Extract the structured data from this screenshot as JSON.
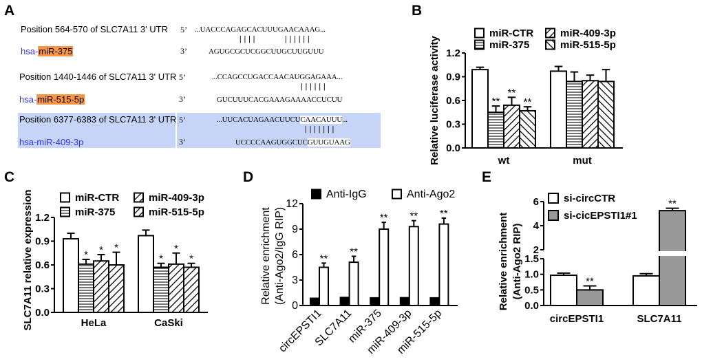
{
  "panel_labels": [
    "A",
    "B",
    "C",
    "D",
    "E"
  ],
  "panel_a": {
    "highlight_color": "#f79646",
    "row_highlight_color": "#c6d4f7",
    "five_prime": "5’",
    "three_prime": "3’",
    "rows": [
      {
        "position": "Position 564-570 of SLC7A11 3' UTR",
        "mirna_prefix": "hsa-",
        "mirna_name": "miR-375",
        "mirna_highlighted": true,
        "utr_seq": "...UACCCAGAGCACUUUGAACAAAG...",
        "utr_seq_highlight": "",
        "utr_seq_suffix": "",
        "pairing": "||||      ||||||",
        "mirna_seq": "AGUGCGCUCGGCUUGCUUGUUU",
        "mirna_seq_highlight": ""
      },
      {
        "position": "Position 1440-1446 of SLC7A11 3' UTR",
        "mirna_prefix": "hsa-",
        "mirna_name": "miR-515-5p",
        "mirna_highlighted": true,
        "utr_seq": "...CCAGCCUGACCAACAUGGAGAAA...",
        "utr_seq_highlight": "",
        "utr_seq_suffix": "",
        "pairing": "||||||",
        "mirna_seq": "GUCUUUCACGAAAGAAAACCUCUU",
        "mirna_seq_highlight": ""
      },
      {
        "position": "Position 6377-6383 of SLC7A11 3' UTR",
        "mirna_prefix": "hsa-",
        "mirna_name": "miR-409-3p",
        "mirna_highlighted": false,
        "utr_seq": "...UUCACUAGAACUUCU",
        "utr_seq_highlight": "CAACAUUU",
        "utr_seq_suffix": "...",
        "pairing": "|||||||",
        "mirna_seq": "UCCCCAAGUGGCUC",
        "mirna_seq_highlight": "GUUGUAAG"
      }
    ]
  },
  "chart_data": [
    {
      "panel": "B",
      "type": "bar",
      "categories": [
        "wt",
        "mut"
      ],
      "ylabel": [
        "Relative luciferase activity"
      ],
      "ylim": [
        0,
        1.2
      ],
      "yticks": [
        0,
        0.3,
        0.6,
        0.9,
        1.2
      ],
      "ytick_labels": [
        "0.0",
        "0.3",
        "0.6",
        "0.9",
        "1.2"
      ],
      "legend_placement": "top",
      "series": [
        {
          "name": "miR-CTR",
          "pattern": "open",
          "values": [
            0.99,
            0.97
          ],
          "errors": [
            0.03,
            0.06
          ],
          "significance": [
            "",
            ""
          ]
        },
        {
          "name": "miR-375",
          "pattern": "horizontal-lines",
          "values": [
            0.45,
            0.84
          ],
          "errors": [
            0.08,
            0.12
          ],
          "significance": [
            "**",
            ""
          ]
        },
        {
          "name": "miR-409-3p",
          "pattern": "back-diagonal",
          "values": [
            0.54,
            0.85
          ],
          "errors": [
            0.1,
            0.07
          ],
          "significance": [
            "**",
            ""
          ]
        },
        {
          "name": "miR-515-5p",
          "pattern": "forward-diagonal",
          "values": [
            0.47,
            0.84
          ],
          "errors": [
            0.05,
            0.15
          ],
          "significance": [
            "**",
            ""
          ]
        }
      ]
    },
    {
      "panel": "C",
      "type": "bar",
      "categories": [
        "HeLa",
        "CaSki"
      ],
      "ylabel": [
        "SLC7A11 relative expression"
      ],
      "ylim": [
        0,
        1.2
      ],
      "yticks": [
        0,
        0.3,
        0.6,
        0.9,
        1.2
      ],
      "ytick_labels": [
        "0.0",
        "0.3",
        "0.6",
        "0.9",
        "1.2"
      ],
      "legend_placement": "top",
      "series": [
        {
          "name": "miR-CTR",
          "pattern": "open",
          "values": [
            0.93,
            0.97
          ],
          "errors": [
            0.07,
            0.07
          ],
          "significance": [
            "",
            ""
          ]
        },
        {
          "name": "miR-375",
          "pattern": "horizontal-lines",
          "values": [
            0.61,
            0.57
          ],
          "errors": [
            0.06,
            0.05
          ],
          "significance": [
            "*",
            "*"
          ]
        },
        {
          "name": "miR-409-3p",
          "pattern": "back-diagonal",
          "values": [
            0.65,
            0.61
          ],
          "errors": [
            0.08,
            0.14
          ],
          "significance": [
            "*",
            "*"
          ]
        },
        {
          "name": "miR-515-5p",
          "pattern": "back-diagonal",
          "values": [
            0.6,
            0.57
          ],
          "errors": [
            0.16,
            0.05
          ],
          "significance": [
            "*",
            "*"
          ]
        }
      ]
    },
    {
      "panel": "D",
      "type": "bar",
      "categories": [
        "circEPSTI1",
        "SLC7A11",
        "miR-375",
        "miR-409-3p",
        "miR-515-5p"
      ],
      "ylabel": [
        "Relative enrichment",
        "(Anti-Ago2/IgG RIP)"
      ],
      "ylim": [
        0,
        12
      ],
      "yticks": [
        0,
        3,
        6,
        9,
        12
      ],
      "ytick_labels": [
        "0",
        "3",
        "6",
        "9",
        "12"
      ],
      "legend_placement": "top",
      "series": [
        {
          "name": "Anti-IgG",
          "pattern": "solid-black",
          "values": [
            0.85,
            0.95,
            0.9,
            0.92,
            0.9
          ],
          "errors": [
            0,
            0,
            0,
            0,
            0
          ],
          "significance": [
            "",
            "",
            "",
            "",
            ""
          ]
        },
        {
          "name": "Anti-Ago2",
          "pattern": "open",
          "values": [
            4.5,
            5.1,
            9.0,
            9.3,
            9.6
          ],
          "errors": [
            0.5,
            0.7,
            0.8,
            0.7,
            0.7
          ],
          "significance": [
            "**",
            "**",
            "**",
            "**",
            "**"
          ]
        }
      ]
    },
    {
      "panel": "E",
      "type": "bar",
      "categories": [
        "circEPSTI1",
        "SLC7A11"
      ],
      "ylabel": [
        "Relative enrichment",
        "(Anti-Ago2 RIP)"
      ],
      "ylim": [
        0,
        6
      ],
      "axis_break": [
        1.5,
        2
      ],
      "yticks": [
        0,
        0.5,
        1.0,
        1.5,
        2,
        4,
        6
      ],
      "ytick_labels": [
        "0.0",
        "0.5",
        "1.0",
        "1.5",
        "2",
        "4",
        "6"
      ],
      "legend_placement": "top-left",
      "series": [
        {
          "name": "si-circCTR",
          "pattern": "open",
          "values": [
            0.97,
            0.95
          ],
          "errors": [
            0.07,
            0.07
          ],
          "significance": [
            "",
            ""
          ]
        },
        {
          "name": "si-cicEPSTI1#1",
          "pattern": "solid-gray",
          "values": [
            0.5,
            5.25
          ],
          "errors": [
            0.13,
            0.2
          ],
          "significance": [
            "**",
            "**"
          ]
        }
      ]
    }
  ]
}
